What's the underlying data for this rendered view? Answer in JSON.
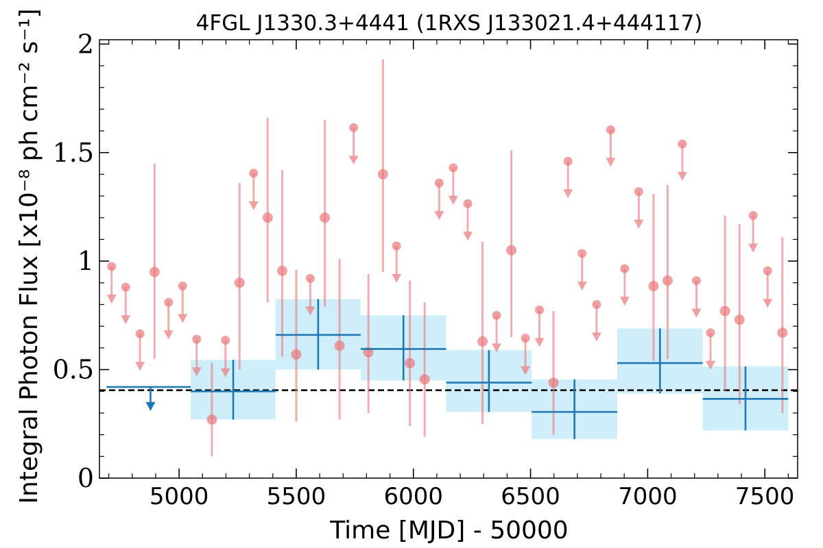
{
  "chart_data": {
    "type": "scatter",
    "title": "4FGL J1330.3+4441 (1RXS J133021.4+444117)",
    "xlabel": "Time [MJD] - 50000",
    "ylabel": "Integral Photon Flux [x10⁻⁸ ph cm⁻² s⁻¹]",
    "xlim": [
      4660,
      7640
    ],
    "ylim": [
      0,
      2.02
    ],
    "xticks": [
      5000,
      5500,
      6000,
      6500,
      7000,
      7500
    ],
    "xtick_labels": [
      "5000",
      "5500",
      "6000",
      "6500",
      "7000",
      "7500"
    ],
    "yticks": [
      0,
      0.5,
      1,
      1.5,
      2
    ],
    "ytick_labels": [
      "0",
      "0.5",
      "1",
      "1.5",
      "2"
    ],
    "reference_level": 0.405,
    "colors": {
      "points": "#e8787a",
      "bins": "#1f77b4",
      "bin_band": "#cfeefc",
      "reference": "#000000"
    },
    "series": [
      {
        "kind": "detections",
        "points": [
          {
            "x": 4895,
            "y": 0.95,
            "lo": 0.55,
            "hi": 1.45
          },
          {
            "x": 5140,
            "y": 0.27,
            "lo": 0.1,
            "hi": 0.53
          },
          {
            "x": 5258,
            "y": 0.9,
            "lo": 0.5,
            "hi": 1.36
          },
          {
            "x": 5378,
            "y": 1.2,
            "lo": 0.81,
            "hi": 1.66
          },
          {
            "x": 5440,
            "y": 0.955,
            "lo": 0.56,
            "hi": 1.42
          },
          {
            "x": 5500,
            "y": 0.57,
            "lo": 0.26,
            "hi": 0.96
          },
          {
            "x": 5622,
            "y": 1.2,
            "lo": 0.79,
            "hi": 1.65
          },
          {
            "x": 5685,
            "y": 0.61,
            "lo": 0.27,
            "hi": 1.01
          },
          {
            "x": 5808,
            "y": 0.58,
            "lo": 0.3,
            "hi": 0.94
          },
          {
            "x": 5870,
            "y": 1.4,
            "lo": 0.95,
            "hi": 1.93
          },
          {
            "x": 5985,
            "y": 0.53,
            "lo": 0.24,
            "hi": 0.91
          },
          {
            "x": 6048,
            "y": 0.455,
            "lo": 0.19,
            "hi": 0.81
          },
          {
            "x": 6295,
            "y": 0.63,
            "lo": 0.25,
            "hi": 1.09
          },
          {
            "x": 6418,
            "y": 1.05,
            "lo": 0.65,
            "hi": 1.51
          },
          {
            "x": 6598,
            "y": 0.44,
            "lo": 0.2,
            "hi": 0.77
          },
          {
            "x": 7025,
            "y": 0.885,
            "lo": 0.54,
            "hi": 1.31
          },
          {
            "x": 7085,
            "y": 0.91,
            "lo": 0.55,
            "hi": 1.35
          },
          {
            "x": 7330,
            "y": 0.77,
            "lo": 0.4,
            "hi": 1.21
          },
          {
            "x": 7392,
            "y": 0.73,
            "lo": 0.34,
            "hi": 1.17
          },
          {
            "x": 7575,
            "y": 0.67,
            "lo": 0.3,
            "hi": 1.11
          }
        ]
      },
      {
        "kind": "upper_limits",
        "points": [
          {
            "x": 4712,
            "y": 0.975
          },
          {
            "x": 4772,
            "y": 0.88
          },
          {
            "x": 4833,
            "y": 0.665
          },
          {
            "x": 4955,
            "y": 0.81
          },
          {
            "x": 5015,
            "y": 0.885
          },
          {
            "x": 5075,
            "y": 0.64
          },
          {
            "x": 5198,
            "y": 0.635
          },
          {
            "x": 5318,
            "y": 1.405
          },
          {
            "x": 5560,
            "y": 0.92
          },
          {
            "x": 5745,
            "y": 1.615
          },
          {
            "x": 5928,
            "y": 1.07
          },
          {
            "x": 6110,
            "y": 1.36
          },
          {
            "x": 6170,
            "y": 1.43
          },
          {
            "x": 6232,
            "y": 1.265
          },
          {
            "x": 6355,
            "y": 0.75
          },
          {
            "x": 6478,
            "y": 0.645
          },
          {
            "x": 6538,
            "y": 0.775
          },
          {
            "x": 6660,
            "y": 1.46
          },
          {
            "x": 6720,
            "y": 1.035
          },
          {
            "x": 6782,
            "y": 0.8
          },
          {
            "x": 6842,
            "y": 1.605
          },
          {
            "x": 6902,
            "y": 0.965
          },
          {
            "x": 6962,
            "y": 1.32
          },
          {
            "x": 7148,
            "y": 1.54
          },
          {
            "x": 7208,
            "y": 0.91
          },
          {
            "x": 7268,
            "y": 0.67
          },
          {
            "x": 7450,
            "y": 1.21
          },
          {
            "x": 7512,
            "y": 0.955
          }
        ]
      },
      {
        "kind": "binned",
        "bins": [
          {
            "x0": 4690,
            "x1": 5050,
            "y": 0.42,
            "upper_limit": true
          },
          {
            "x0": 5050,
            "x1": 5412,
            "y": 0.4,
            "lo": 0.27,
            "hi": 0.545
          },
          {
            "x0": 5412,
            "x1": 5775,
            "y": 0.66,
            "lo": 0.5,
            "hi": 0.825
          },
          {
            "x0": 5775,
            "x1": 6140,
            "y": 0.595,
            "lo": 0.45,
            "hi": 0.75
          },
          {
            "x0": 6140,
            "x1": 6505,
            "y": 0.44,
            "lo": 0.305,
            "hi": 0.59
          },
          {
            "x0": 6505,
            "x1": 6870,
            "y": 0.305,
            "lo": 0.18,
            "hi": 0.455
          },
          {
            "x0": 6870,
            "x1": 7235,
            "y": 0.53,
            "lo": 0.39,
            "hi": 0.69
          },
          {
            "x0": 7235,
            "x1": 7600,
            "y": 0.365,
            "lo": 0.22,
            "hi": 0.515
          }
        ]
      }
    ]
  }
}
